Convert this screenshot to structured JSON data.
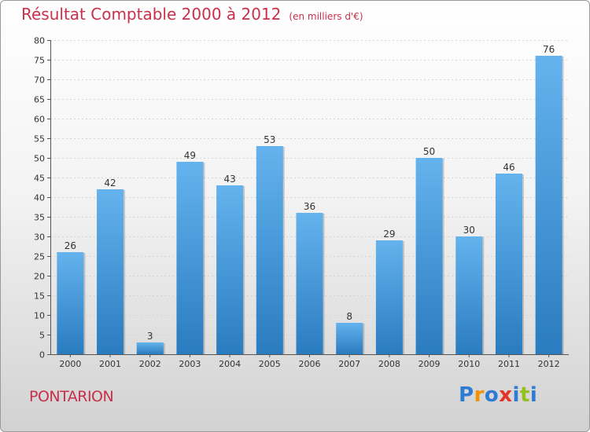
{
  "chart_data": {
    "type": "bar",
    "title": "Résultat Comptable 2000 à 2012",
    "subtitle": "(en milliers d'€)",
    "categories": [
      "2000",
      "2001",
      "2002",
      "2003",
      "2004",
      "2005",
      "2006",
      "2007",
      "2008",
      "2009",
      "2010",
      "2011",
      "2012"
    ],
    "values": [
      26,
      42,
      3,
      49,
      43,
      53,
      36,
      8,
      29,
      50,
      30,
      46,
      76
    ],
    "ylim": [
      0,
      80
    ],
    "yticks": [
      0,
      5,
      10,
      15,
      20,
      25,
      30,
      35,
      40,
      45,
      50,
      55,
      60,
      65,
      70,
      75,
      80
    ],
    "grid": true,
    "xlabel": "",
    "ylabel": "",
    "colors": {
      "bar_light": "#64b3ee",
      "bar_dark": "#2a7cc0",
      "title": "#c8304a"
    }
  },
  "footer": {
    "city": "PONTARION",
    "brand": {
      "letters": [
        "P",
        "r",
        "o",
        "x",
        "i",
        "t",
        "i"
      ],
      "colors": [
        "#2f7ad3",
        "#f39200",
        "#2f7ad3",
        "#e6332a",
        "#2f7ad3",
        "#95c11f",
        "#2f7ad3"
      ]
    }
  }
}
